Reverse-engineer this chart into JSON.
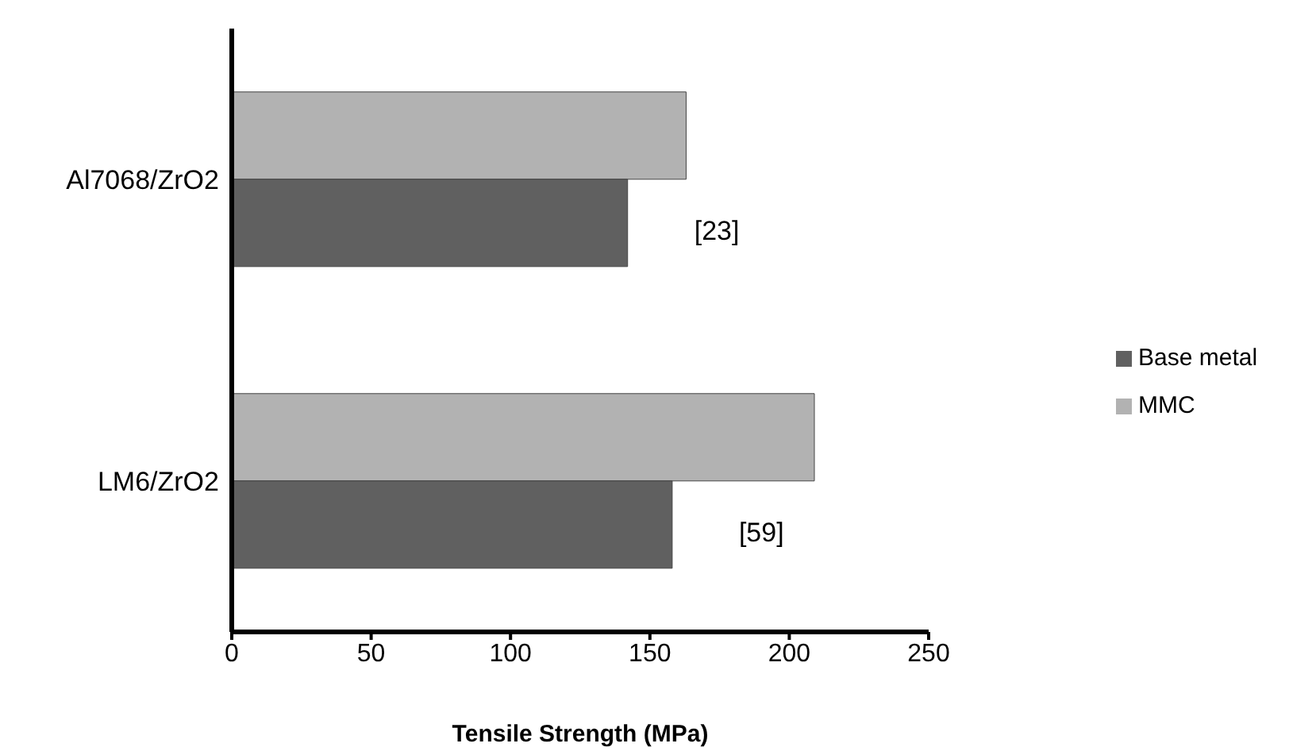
{
  "chart_data": {
    "type": "bar",
    "orientation": "horizontal",
    "categories": [
      "Al7068/ZrO2",
      "LM6/ZrO2"
    ],
    "series": [
      {
        "name": "MMC",
        "color": "#b2b2b2",
        "values": [
          163,
          209
        ]
      },
      {
        "name": "Base metal",
        "color": "#606060",
        "values": [
          142,
          158
        ]
      }
    ],
    "xlabel": "Tensile Strength (MPa)",
    "xlim": [
      0,
      250
    ],
    "xticks": [
      0,
      50,
      100,
      150,
      200,
      250
    ],
    "legend": "right",
    "grid": false,
    "annotations": [
      {
        "text": "[23]",
        "x": 142,
        "y": "Al7068/ZrO2"
      },
      {
        "text": "[59]",
        "x": 158,
        "y": "LM6/ZrO2"
      }
    ]
  }
}
